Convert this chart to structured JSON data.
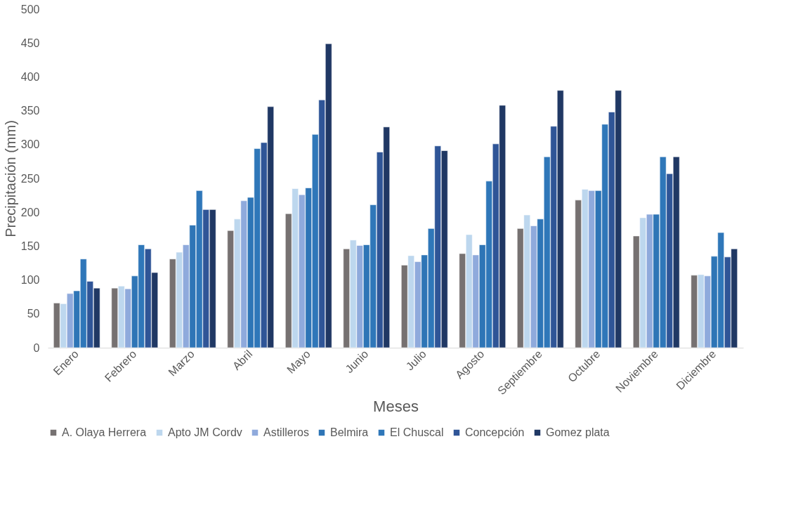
{
  "chart_data": {
    "type": "bar",
    "xlabel": "Meses",
    "ylabel": "Precipitación (mm)",
    "categories": [
      "Enero",
      "Febrero",
      "Marzo",
      "Abril",
      "Mayo",
      "Junio",
      "Julio",
      "Agosto",
      "Septiembre",
      "Octubre",
      "Noviembre",
      "Diciembre"
    ],
    "ylim": [
      0,
      500
    ],
    "yticks": [
      0,
      50,
      100,
      150,
      200,
      250,
      300,
      350,
      400,
      450,
      500
    ],
    "grid": false,
    "legend": "bottom",
    "series": [
      {
        "name": "A. Olaya Herrera",
        "color": "#767171",
        "values": [
          66,
          88,
          131,
          173,
          198,
          146,
          122,
          139,
          176,
          218,
          165,
          107
        ]
      },
      {
        "name": "Apto JM Cordv",
        "color": "#bdd7ee",
        "values": [
          65,
          91,
          141,
          190,
          235,
          159,
          136,
          167,
          196,
          234,
          192,
          108
        ]
      },
      {
        "name": "Astilleros",
        "color": "#8faadc",
        "values": [
          80,
          87,
          152,
          217,
          226,
          151,
          127,
          137,
          180,
          232,
          197,
          106
        ]
      },
      {
        "name": "Belmira",
        "color": "#2e75b6",
        "values": [
          84,
          106,
          181,
          222,
          236,
          152,
          137,
          152,
          190,
          232,
          197,
          135
        ]
      },
      {
        "name": "El Chuscal",
        "color": "#2f77b9",
        "values": [
          131,
          152,
          232,
          294,
          315,
          211,
          176,
          246,
          282,
          330,
          282,
          170
        ]
      },
      {
        "name": "Concepción",
        "color": "#2f5597",
        "values": [
          98,
          146,
          204,
          303,
          366,
          289,
          298,
          301,
          327,
          348,
          257,
          134
        ]
      },
      {
        "name": "Gomez plata",
        "color": "#203864",
        "values": [
          88,
          111,
          204,
          356,
          449,
          326,
          291,
          358,
          380,
          380,
          282,
          146
        ]
      }
    ]
  }
}
